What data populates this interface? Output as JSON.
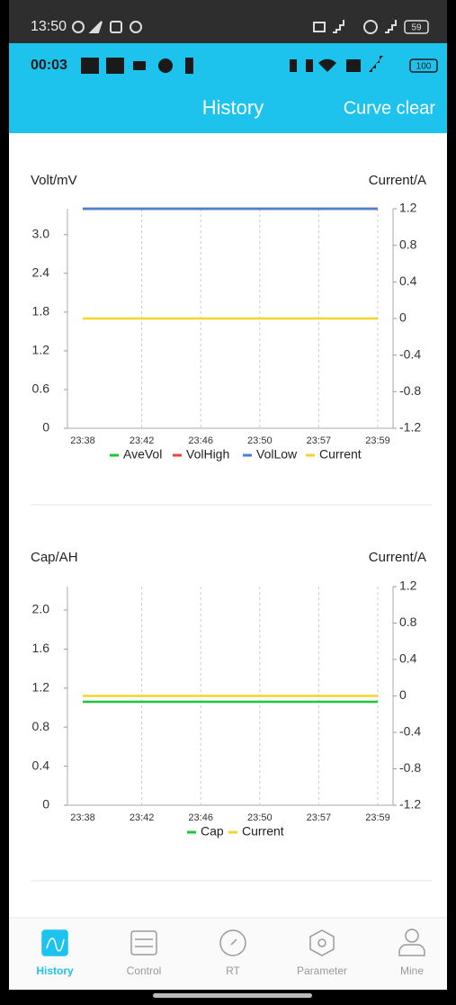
{
  "system_status": {
    "time": "13:50",
    "battery": "59"
  },
  "app_status": {
    "time": "00:03",
    "battery": "100"
  },
  "header": {
    "title": "History",
    "action": "Curve clear"
  },
  "chart_data": [
    {
      "type": "line",
      "y_label": "Volt/mV",
      "y2_label": "Current/A",
      "categories": [
        "23:38",
        "23:42",
        "23:46",
        "23:50",
        "23:57",
        "23:59"
      ],
      "series": [
        {
          "name": "AveVol",
          "color": "#1fc63a",
          "values": [
            3.4,
            3.4,
            3.4,
            3.4,
            3.4,
            3.4
          ]
        },
        {
          "name": "VolHigh",
          "color": "#f0413c",
          "values": [
            3.4,
            3.4,
            3.4,
            3.4,
            3.4,
            3.4
          ]
        },
        {
          "name": "VolLow",
          "color": "#4a7fd4",
          "values": [
            3.4,
            3.4,
            3.4,
            3.4,
            3.4,
            3.4
          ]
        },
        {
          "name": "Current",
          "color": "#f6d52b",
          "axis": "y2",
          "values": [
            0,
            0,
            0,
            0,
            0,
            0
          ]
        }
      ],
      "ylim": [
        0,
        3.4
      ],
      "yticks": [
        0,
        0.6,
        1.2,
        1.8,
        2.4,
        {
          "value": 3,
          "label": "3.0"
        }
      ],
      "y2lim": [
        -1.2,
        1.2
      ],
      "y2ticks": [
        -1.2,
        -0.8,
        -0.4,
        0,
        0.4,
        0.8,
        1.2
      ],
      "grid": true
    },
    {
      "type": "line",
      "y_label": "Cap/AH",
      "y2_label": "Current/A",
      "categories": [
        "23:38",
        "23:42",
        "23:46",
        "23:50",
        "23:57",
        "23:59"
      ],
      "series": [
        {
          "name": "Cap",
          "color": "#1fc63a",
          "values": [
            1.06,
            1.06,
            1.06,
            1.06,
            1.06,
            1.06
          ]
        },
        {
          "name": "Current",
          "color": "#f6d52b",
          "axis": "y2",
          "values": [
            0,
            0,
            0,
            0,
            0,
            0
          ]
        }
      ],
      "ylim": [
        0,
        2.24
      ],
      "yticks": [
        0,
        0.4,
        0.8,
        1.2,
        1.6,
        {
          "value": 2,
          "label": "2.0"
        }
      ],
      "y2lim": [
        -1.2,
        1.2
      ],
      "y2ticks": [
        -1.2,
        -0.8,
        -0.4,
        0,
        0.4,
        0.8,
        1.2
      ],
      "grid": true
    }
  ],
  "nav": [
    {
      "label": "History",
      "active": true
    },
    {
      "label": "Control",
      "active": false
    },
    {
      "label": "RT",
      "active": false
    },
    {
      "label": "Parameter",
      "active": false
    },
    {
      "label": "Mine",
      "active": false
    }
  ]
}
